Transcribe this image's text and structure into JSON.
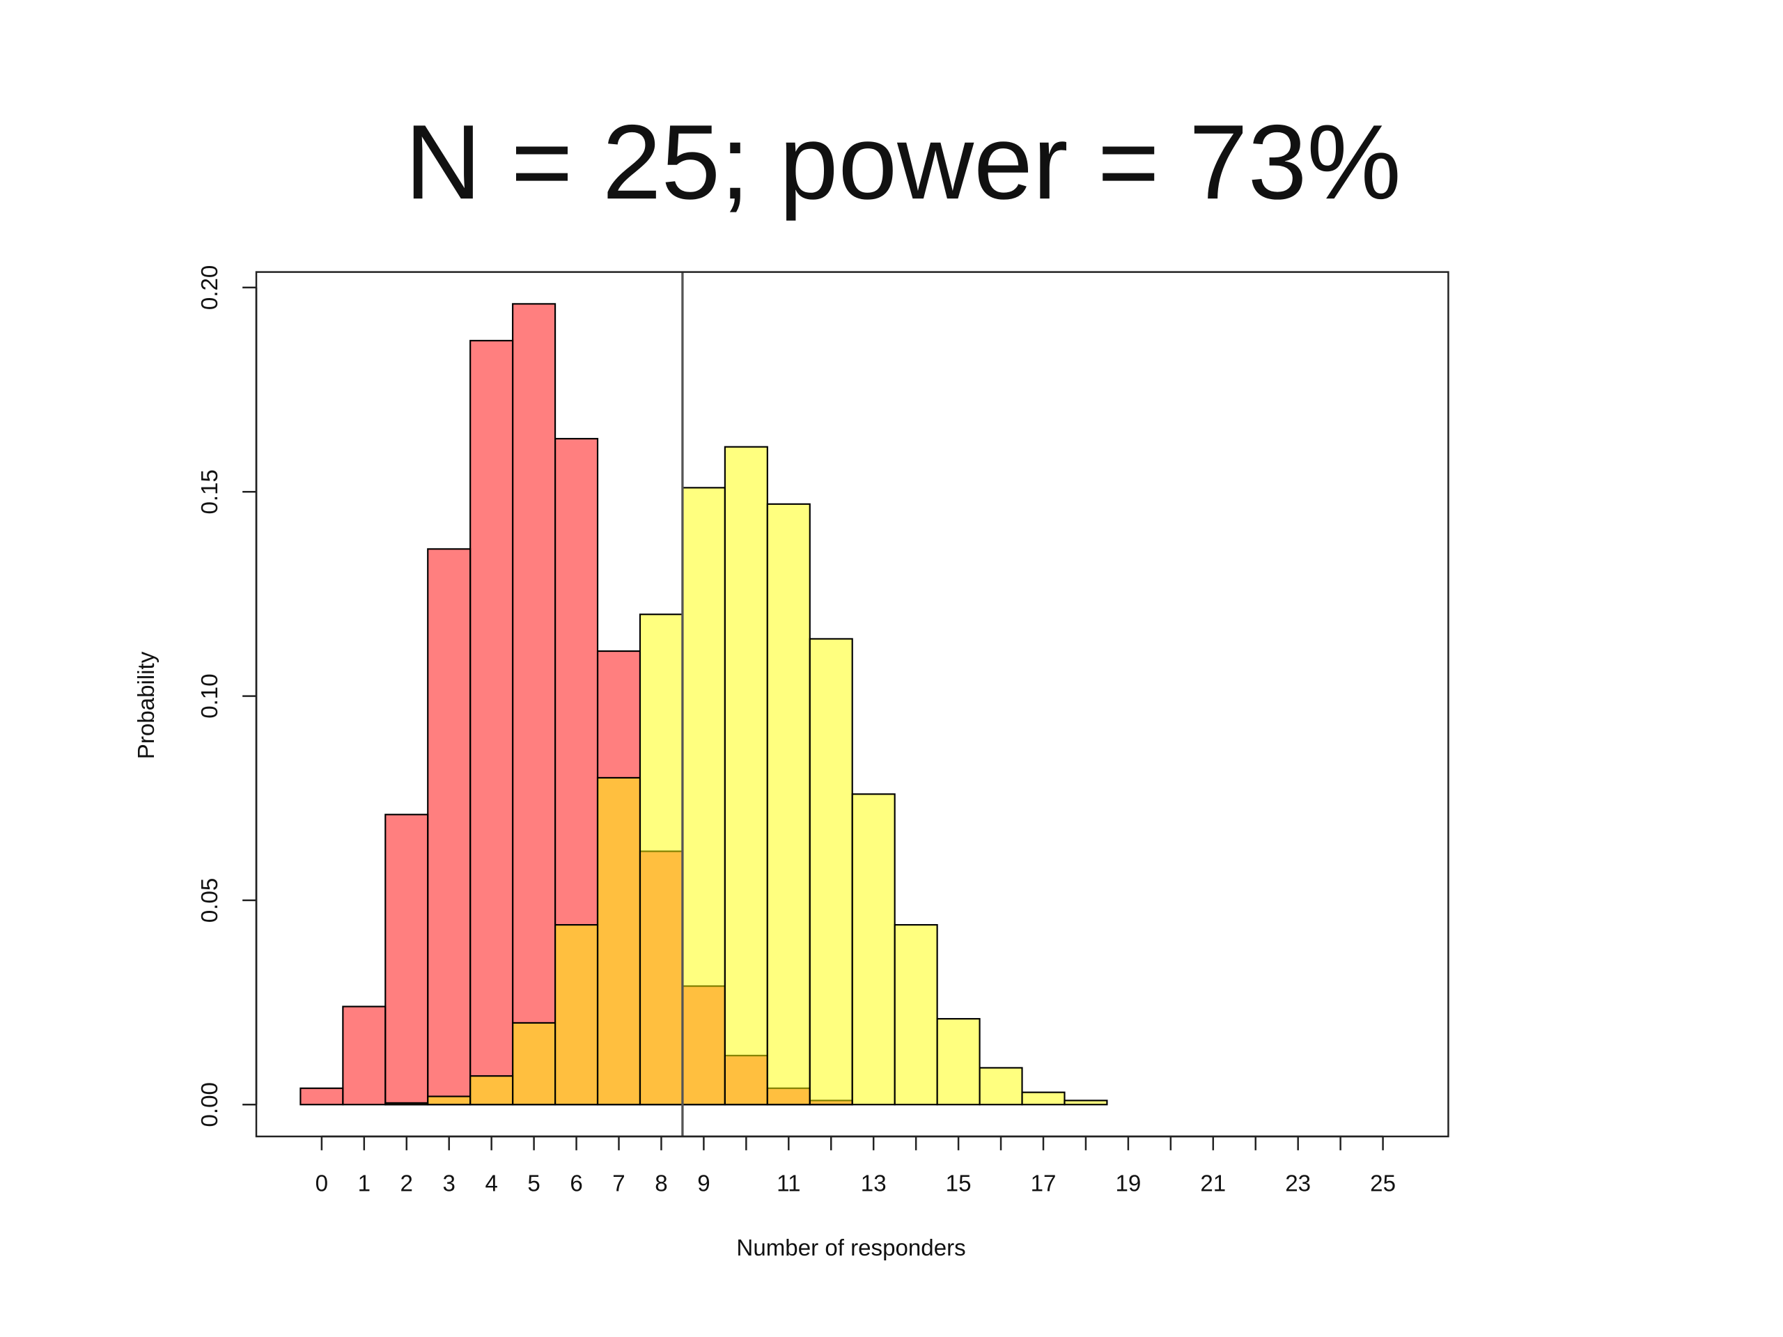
{
  "chart_data": {
    "type": "histogram",
    "title": "N = 25; power = 73%",
    "xlabel": "Number of responders",
    "ylabel": "Probability",
    "bins": [
      -0.5,
      0.5,
      1.5,
      2.5,
      3.5,
      4.5,
      5.5,
      6.5,
      7.5,
      8.5,
      9.5,
      10.5,
      11.5,
      12.5,
      13.5,
      14.5,
      15.5,
      16.5,
      17.5,
      18.5,
      19.5,
      20.5,
      21.5,
      22.5,
      23.5,
      24.5,
      25.5
    ],
    "series": [
      {
        "color": "#ff000080",
        "values": [
          0.004,
          0.024,
          0.071,
          0.136,
          0.187,
          0.196,
          0.163,
          0.111,
          0.062,
          0.029,
          0.012,
          0.004,
          0.001,
          0,
          0,
          0,
          0,
          0,
          0,
          0,
          0,
          0,
          0,
          0,
          0,
          0
        ]
      },
      {
        "color": "#ffff0080",
        "values": [
          0,
          0,
          0.0004,
          0.002,
          0.007,
          0.02,
          0.044,
          0.08,
          0.12,
          0.151,
          0.161,
          0.147,
          0.114,
          0.076,
          0.044,
          0.021,
          0.009,
          0.003,
          0.001,
          0,
          0,
          0,
          0,
          0,
          0,
          0
        ]
      }
    ],
    "vline": 8.5,
    "xlim": [
      -1.54,
      26.54
    ],
    "ylim": [
      -0.0078,
      0.2038
    ],
    "xticks": [
      0,
      1,
      2,
      3,
      4,
      5,
      6,
      7,
      8,
      9,
      {
        "value": 10,
        "label": null
      },
      11,
      {
        "value": 12,
        "label": null
      },
      13,
      {
        "value": 14,
        "label": null
      },
      15,
      {
        "value": 16,
        "label": null
      },
      17,
      {
        "value": 18,
        "label": null
      },
      19,
      {
        "value": 20,
        "label": null
      },
      21,
      {
        "value": 22,
        "label": null
      },
      23,
      {
        "value": 24,
        "label": null
      },
      25
    ],
    "yticks": [
      {
        "value": 0,
        "label": "0.00"
      },
      {
        "value": 0.05,
        "label": "0.05"
      },
      {
        "value": 0.1,
        "label": "0.10"
      },
      {
        "value": 0.15,
        "label": "0.15"
      },
      {
        "value": 0.2,
        "label": "0.20"
      }
    ]
  }
}
